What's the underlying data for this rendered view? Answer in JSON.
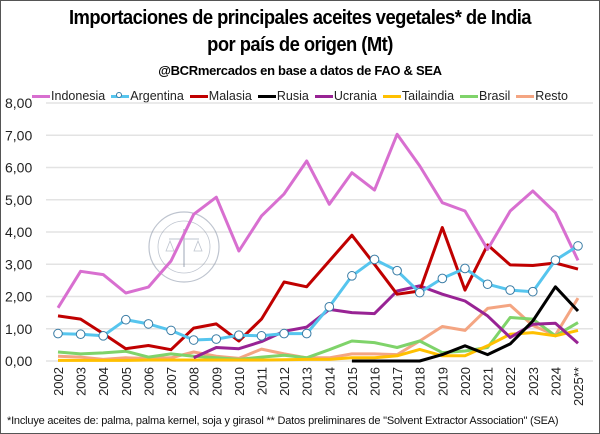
{
  "header": {
    "title_line1": "Importaciones de principales aceites vegetales* de India",
    "title_line2": "por país de origen (Mt)",
    "subtitle": "@BCRmercados en base a datos de FAO & SEA"
  },
  "watermark": {
    "text": "BOLSA DE COMERCIO DE ROSARIO"
  },
  "footnote": "*Incluye aceites de: palma, palma kernel, soja y girasol ** Datos preliminares de \"Solvent Extractor Association\" (SEA)",
  "chart_data": {
    "type": "line",
    "title": "Importaciones de principales aceites vegetales* de India por país de origen (Mt)",
    "legend_position": "top",
    "grid": true,
    "ylim": [
      0,
      8
    ],
    "yticks": [
      "0,00",
      "1,00",
      "2,00",
      "3,00",
      "4,00",
      "5,00",
      "6,00",
      "7,00",
      "8,00"
    ],
    "categories": [
      "2002",
      "2003",
      "2004",
      "2005",
      "2006",
      "2007",
      "2008",
      "2009",
      "2010",
      "2011",
      "2012",
      "2013",
      "2014",
      "2015",
      "2016",
      "2017",
      "2018",
      "2019",
      "2020",
      "2021",
      "2022",
      "2023",
      "2024",
      "2025**"
    ],
    "series": [
      {
        "name": "Indonesia",
        "color": "#d86fd0",
        "markers": false,
        "values": [
          1.65,
          2.78,
          2.68,
          2.11,
          2.29,
          3.1,
          4.55,
          5.08,
          3.41,
          4.5,
          5.18,
          6.2,
          4.86,
          5.84,
          5.3,
          7.03,
          6.05,
          4.91,
          4.65,
          3.46,
          4.65,
          5.27,
          4.6,
          3.12
        ]
      },
      {
        "name": "Argentina",
        "color": "#56c5ee",
        "markers": true,
        "values": [
          0.85,
          0.83,
          0.78,
          1.28,
          1.15,
          0.95,
          0.65,
          0.68,
          0.8,
          0.78,
          0.85,
          0.85,
          1.68,
          2.64,
          3.15,
          2.8,
          2.12,
          2.56,
          2.87,
          2.38,
          2.2,
          2.15,
          3.13,
          3.57
        ]
      },
      {
        "name": "Malasia",
        "color": "#c00000",
        "markers": false,
        "values": [
          1.4,
          1.3,
          0.85,
          0.38,
          0.48,
          0.35,
          1.02,
          1.15,
          0.62,
          1.3,
          2.45,
          2.3,
          3.1,
          3.9,
          3.0,
          2.07,
          2.17,
          4.14,
          2.2,
          3.6,
          2.98,
          2.96,
          3.04,
          2.85
        ]
      },
      {
        "name": "Rusia",
        "color": "#000000",
        "markers": false,
        "values": [
          null,
          null,
          null,
          null,
          null,
          null,
          null,
          null,
          null,
          null,
          null,
          null,
          null,
          0,
          0,
          0,
          0,
          0.2,
          0.47,
          0.2,
          0.53,
          1.24,
          2.3,
          1.55
        ]
      },
      {
        "name": "Ucrania",
        "color": "#982394",
        "markers": false,
        "values": [
          null,
          null,
          null,
          null,
          null,
          null,
          0.1,
          0.42,
          0.38,
          0.6,
          0.92,
          1.05,
          1.6,
          1.5,
          1.47,
          2.17,
          2.33,
          2.07,
          1.86,
          1.4,
          0.73,
          1.14,
          1.17,
          0.55
        ]
      },
      {
        "name": "Tailaindia",
        "color": "#ffc000",
        "markers": false,
        "values": [
          0.02,
          0.02,
          0.02,
          0.02,
          0.03,
          0.03,
          0.03,
          0.03,
          0.03,
          0.03,
          0.04,
          0.05,
          0.05,
          0.1,
          0.1,
          0.16,
          0.36,
          0.16,
          0.16,
          0.47,
          0.83,
          0.88,
          0.78,
          0.95
        ]
      },
      {
        "name": "Brasil",
        "color": "#7fd36a",
        "markers": false,
        "values": [
          0.28,
          0.22,
          0.25,
          0.3,
          0.12,
          0.22,
          0.15,
          0.1,
          0.05,
          0.12,
          0.18,
          0.1,
          0.35,
          0.62,
          0.57,
          0.42,
          0.62,
          0.26,
          0.31,
          0.42,
          1.35,
          1.3,
          0.78,
          1.19
        ]
      },
      {
        "name": "Resto",
        "color": "#f4a582",
        "markers": false,
        "values": [
          0.15,
          0.12,
          0.05,
          0.1,
          0.08,
          0.1,
          0.28,
          0.15,
          0.08,
          0.37,
          0.22,
          0.1,
          0.1,
          0.22,
          0.22,
          0.2,
          0.62,
          1.07,
          0.95,
          1.63,
          1.73,
          1.1,
          0.8,
          1.95
        ]
      }
    ]
  }
}
